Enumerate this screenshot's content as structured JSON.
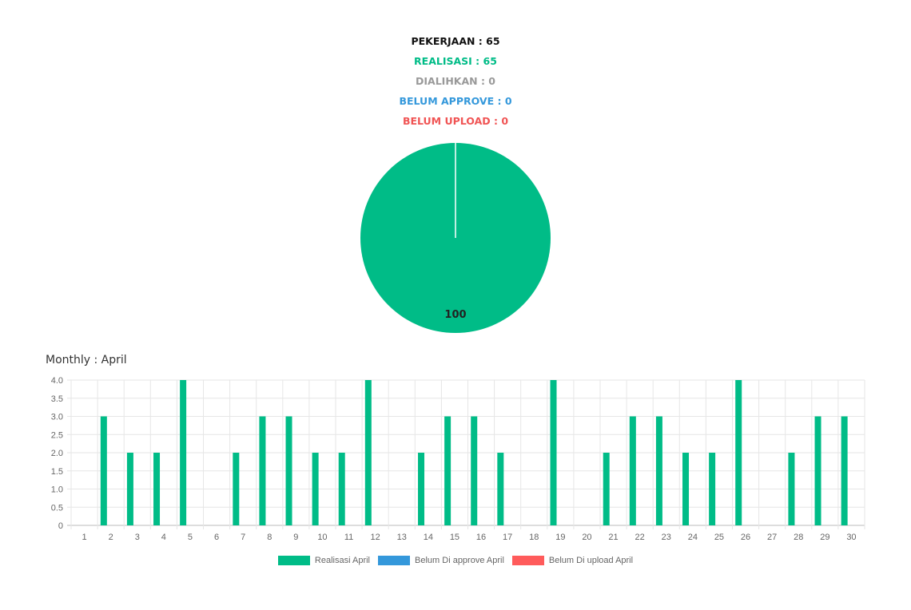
{
  "summary": {
    "pekerjaan": "PEKERJAAN : 65",
    "realisasi": "REALISASI : 65",
    "dialihkan": "DIALIHKAN : 0",
    "belum_approve": "BELUM APPROVE : 0",
    "belum_upload": "BELUM UPLOAD : 0"
  },
  "colors": {
    "pekerjaan": "#111111",
    "realisasi": "#00bc87",
    "dialihkan": "#999999",
    "belum_approve": "#3498db",
    "belum_upload": "#f05454"
  },
  "chart_data": [
    {
      "type": "pie",
      "slices": [
        {
          "label": "Realisasi",
          "value": 100,
          "color": "#00bc87"
        }
      ],
      "data_labels": [
        "100"
      ]
    },
    {
      "type": "bar",
      "title": "Monthly : April",
      "categories": [
        "1",
        "2",
        "3",
        "4",
        "5",
        "6",
        "7",
        "8",
        "9",
        "10",
        "11",
        "12",
        "13",
        "14",
        "15",
        "16",
        "17",
        "18",
        "19",
        "20",
        "21",
        "22",
        "23",
        "24",
        "25",
        "26",
        "27",
        "28",
        "29",
        "30"
      ],
      "series": [
        {
          "name": "Realisasi April",
          "color": "#00bc87",
          "values": [
            0,
            3,
            2,
            2,
            4,
            0,
            2,
            3,
            3,
            2,
            2,
            4,
            0,
            2,
            3,
            3,
            2,
            0,
            4,
            0,
            2,
            3,
            3,
            2,
            2,
            4,
            0,
            2,
            3,
            3
          ]
        },
        {
          "name": "Belum Di approve April",
          "color": "#3498db",
          "values": [
            0,
            0,
            0,
            0,
            0,
            0,
            0,
            0,
            0,
            0,
            0,
            0,
            0,
            0,
            0,
            0,
            0,
            0,
            0,
            0,
            0,
            0,
            0,
            0,
            0,
            0,
            0,
            0,
            0,
            0
          ]
        },
        {
          "name": "Belum Di upload April",
          "color": "#ff5b5b",
          "values": [
            0,
            0,
            0,
            0,
            0,
            0,
            0,
            0,
            0,
            0,
            0,
            0,
            0,
            0,
            0,
            0,
            0,
            0,
            0,
            0,
            0,
            0,
            0,
            0,
            0,
            0,
            0,
            0,
            0,
            0
          ]
        }
      ],
      "y_ticks": [
        "0",
        "0.5",
        "1.0",
        "1.5",
        "2.0",
        "2.5",
        "3.0",
        "3.5",
        "4.0"
      ],
      "ylim": [
        0,
        4
      ],
      "grid": true,
      "legend_position": "bottom"
    }
  ]
}
